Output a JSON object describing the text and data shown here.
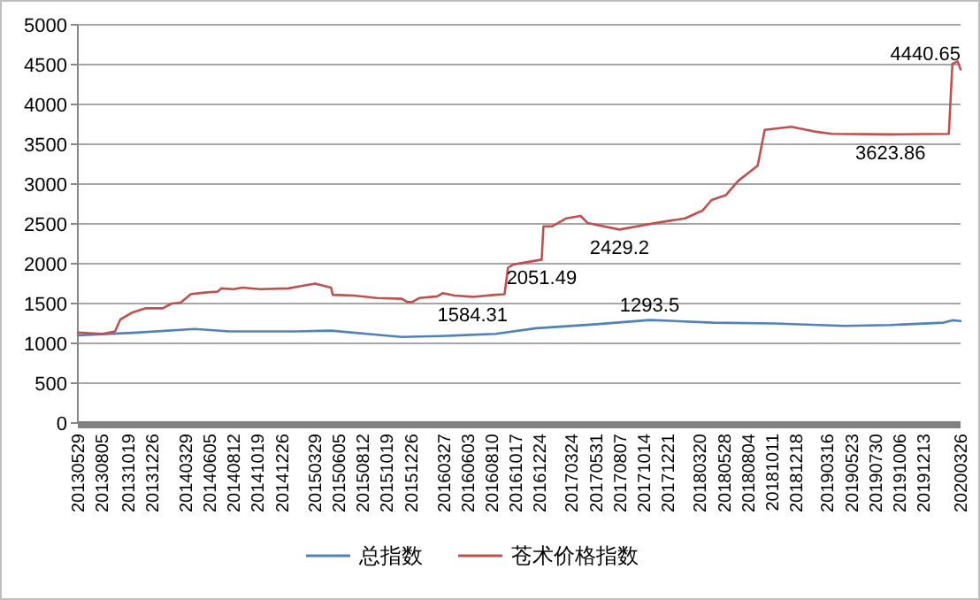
{
  "chart_data": {
    "type": "line",
    "grid": "y",
    "legend": "bottom",
    "marker": "none",
    "line_style": "solid",
    "ylim": [
      0,
      5000
    ],
    "yticks": [
      0,
      500,
      1000,
      1500,
      2000,
      2500,
      3000,
      3500,
      4000,
      4500,
      5000
    ],
    "xlim": [
      "2013-05-29",
      "2020-03-26"
    ],
    "xticks": [
      {
        "value": "2013-05-29",
        "label": "20130529"
      },
      {
        "value": "2013-08-05",
        "label": "20130805"
      },
      {
        "value": "2013-10-19",
        "label": "20131019"
      },
      {
        "value": "2013-12-26",
        "label": "20131226"
      },
      {
        "value": "2014-03-29",
        "label": "20140329"
      },
      {
        "value": "2014-06-05",
        "label": "20140605"
      },
      {
        "value": "2014-08-12",
        "label": "20140812"
      },
      {
        "value": "2014-10-19",
        "label": "20141019"
      },
      {
        "value": "2014-12-26",
        "label": "20141226"
      },
      {
        "value": "2015-03-29",
        "label": "20150329"
      },
      {
        "value": "2015-06-05",
        "label": "20150605"
      },
      {
        "value": "2015-08-12",
        "label": "20150812"
      },
      {
        "value": "2015-10-19",
        "label": "20151019"
      },
      {
        "value": "2015-12-26",
        "label": "20151226"
      },
      {
        "value": "2016-03-27",
        "label": "20160327"
      },
      {
        "value": "2016-06-03",
        "label": "20160603"
      },
      {
        "value": "2016-08-10",
        "label": "20160810"
      },
      {
        "value": "2016-10-17",
        "label": "20161017"
      },
      {
        "value": "2016-12-24",
        "label": "20161224"
      },
      {
        "value": "2017-03-24",
        "label": "20170324"
      },
      {
        "value": "2017-05-31",
        "label": "20170531"
      },
      {
        "value": "2017-08-07",
        "label": "20170807"
      },
      {
        "value": "2017-10-14",
        "label": "20171014"
      },
      {
        "value": "2017-12-21",
        "label": "20171221"
      },
      {
        "value": "2018-03-20",
        "label": "20180320"
      },
      {
        "value": "2018-05-28",
        "label": "20180528"
      },
      {
        "value": "2018-08-04",
        "label": "20180804"
      },
      {
        "value": "2018-10-11",
        "label": "20181011"
      },
      {
        "value": "2018-12-18",
        "label": "20181218"
      },
      {
        "value": "2019-03-16",
        "label": "20190316"
      },
      {
        "value": "2019-05-23",
        "label": "20190523"
      },
      {
        "value": "2019-07-30",
        "label": "20190730"
      },
      {
        "value": "2019-10-06",
        "label": "20191006"
      },
      {
        "value": "2019-12-13",
        "label": "20191213"
      },
      {
        "value": "2020-03-26",
        "label": "20200326"
      }
    ],
    "series": [
      {
        "name": "总指数",
        "color": "#4f81bd",
        "x": [
          "2013-05-29",
          "2013-11-10",
          "2014-04-24",
          "2014-07-31",
          "2015-02-03",
          "2015-05-14",
          "2015-10-11",
          "2015-11-30",
          "2016-04-08",
          "2016-08-21",
          "2016-12-14",
          "2017-06-02",
          "2017-10-30",
          "2018-04-28",
          "2018-10-15",
          "2019-05-03",
          "2019-09-10",
          "2020-02-07",
          "2020-03-03",
          "2020-03-26"
        ],
        "values": [
          1100,
          1135,
          1180,
          1150,
          1150,
          1160,
          1100,
          1080,
          1095,
          1120,
          1190,
          1240,
          1293.5,
          1260,
          1250,
          1220,
          1230,
          1260,
          1290,
          1280
        ],
        "value_labels": [
          null,
          null,
          null,
          null,
          null,
          null,
          null,
          null,
          null,
          null,
          null,
          null,
          "1293.5",
          null,
          null,
          null,
          null,
          null,
          null,
          null
        ]
      },
      {
        "name": "苍术价格指数",
        "color": "#c0504d",
        "x": [
          "2013-05-29",
          "2013-08-07",
          "2013-09-11",
          "2013-09-26",
          "2013-10-31",
          "2013-12-05",
          "2014-01-24",
          "2014-02-18",
          "2014-03-15",
          "2014-04-14",
          "2014-05-29",
          "2014-06-28",
          "2014-07-08",
          "2014-08-12",
          "2014-09-06",
          "2014-10-26",
          "2015-01-14",
          "2015-02-18",
          "2015-03-30",
          "2015-05-14",
          "2015-05-19",
          "2015-07-18",
          "2015-09-21",
          "2015-11-30",
          "2015-12-15",
          "2015-12-30",
          "2016-01-19",
          "2016-03-09",
          "2016-03-24",
          "2016-04-28",
          "2016-06-17",
          "2016-08-21",
          "2016-09-15",
          "2016-09-25",
          "2016-10-10",
          "2016-12-29",
          "2017-01-03",
          "2017-01-28",
          "2017-03-09",
          "2017-04-18",
          "2017-05-08",
          "2017-08-06",
          "2017-11-14",
          "2018-02-07",
          "2018-03-29",
          "2018-04-23",
          "2018-06-02",
          "2018-07-07",
          "2018-08-31",
          "2018-09-20",
          "2018-12-04",
          "2019-02-07",
          "2019-03-29",
          "2019-09-10",
          "2020-02-22",
          "2020-03-03",
          "2020-03-18",
          "2020-03-26"
        ],
        "values": [
          1135,
          1120,
          1150,
          1300,
          1390,
          1440,
          1440,
          1500,
          1510,
          1620,
          1640,
          1650,
          1690,
          1680,
          1700,
          1680,
          1690,
          1720,
          1750,
          1700,
          1610,
          1600,
          1570,
          1560,
          1520,
          1520,
          1570,
          1590,
          1630,
          1600,
          1584.31,
          1610,
          1616,
          1950,
          1990,
          2051.49,
          2470,
          2470,
          2570,
          2600,
          2510,
          2429.2,
          2510,
          2570,
          2670,
          2800,
          2860,
          3040,
          3230,
          3680,
          3720,
          3660,
          3630,
          3623.86,
          3630,
          4510,
          4540,
          4440.65
        ],
        "value_labels": [
          null,
          null,
          null,
          null,
          null,
          null,
          null,
          null,
          null,
          null,
          null,
          null,
          null,
          null,
          null,
          null,
          null,
          null,
          null,
          null,
          null,
          null,
          null,
          null,
          null,
          null,
          null,
          null,
          null,
          null,
          "1584.31",
          null,
          null,
          null,
          null,
          "2051.49",
          null,
          null,
          null,
          null,
          null,
          "2429.2",
          null,
          null,
          null,
          null,
          null,
          null,
          null,
          null,
          null,
          null,
          null,
          "3623.86",
          null,
          null,
          null,
          "4440.65"
        ]
      }
    ]
  }
}
